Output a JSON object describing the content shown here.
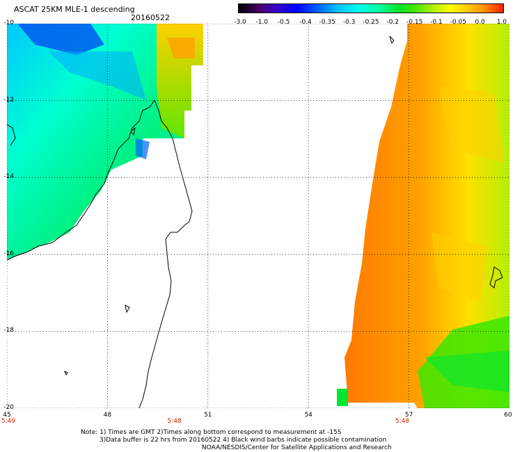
{
  "header": {
    "title": "ASCAT 25KM MLE-1 descending",
    "date": "20160522"
  },
  "colorbar": {
    "labels": [
      "-3.0",
      "-1.0",
      "-0.5",
      "-0.4",
      "-0.35",
      "-0.3",
      "-0.25",
      "-0.2",
      "-0.15",
      "-0.1",
      "-0.05",
      "0.0",
      "1.0"
    ]
  },
  "axes": {
    "lat_labels": [
      "-10",
      "-12",
      "-14",
      "-16",
      "-18",
      "-20"
    ],
    "lon_labels": [
      "45",
      "48",
      "51",
      "54",
      "57",
      "60"
    ],
    "lat_range": [
      -20,
      -10
    ],
    "lon_range": [
      45,
      60
    ]
  },
  "time_labels": [
    {
      "lon": 45,
      "text": "5:49"
    },
    {
      "lon": 50,
      "text": "5:48"
    },
    {
      "lon": 56.8,
      "text": "5:48"
    }
  ],
  "notes": {
    "line1": "Note: 1) Times are GMT 2)Times along bottom correspond to measurement at -15S",
    "line2": "3)Data buffer is 22 hrs from 20160522 4) Black wind barbs indicate possible contamination",
    "line3": "NOAA/NESDIS/Center for Satellite Applications and Research"
  },
  "colors": {
    "swath_west": "#00e6a0",
    "swath_east": "#ff8c00",
    "coast": "#000000"
  }
}
